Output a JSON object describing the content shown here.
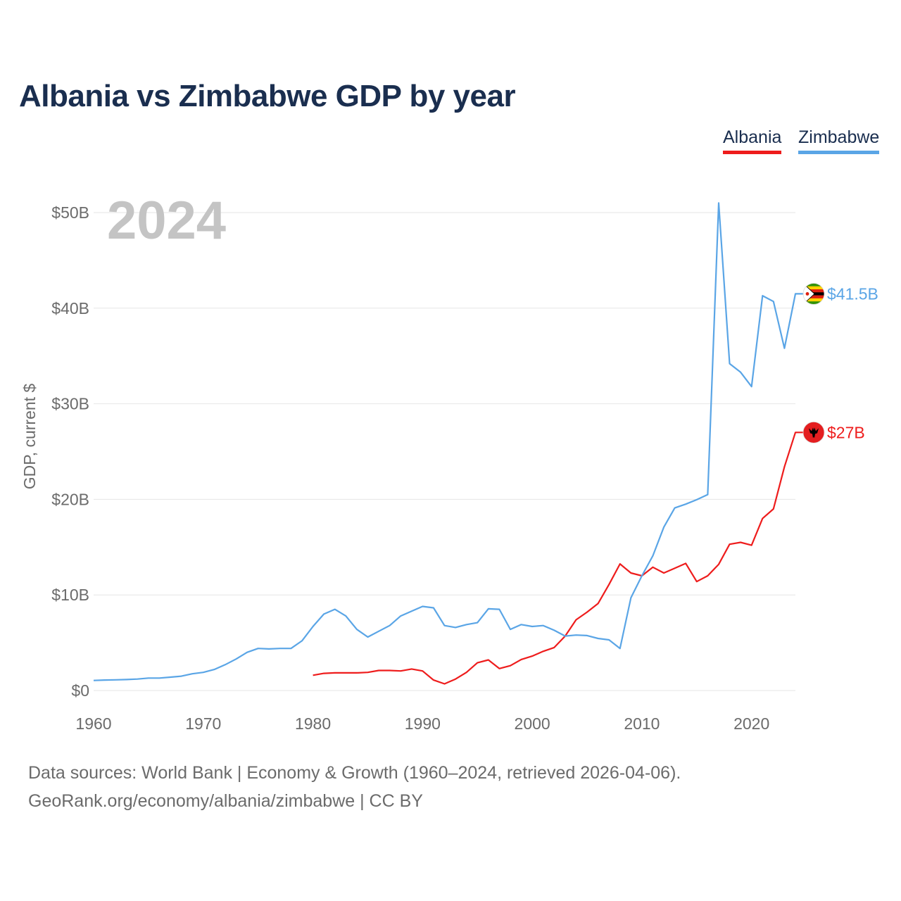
{
  "title": "Albania vs Zimbabwe GDP by year",
  "legend": {
    "albania": "Albania",
    "zimbabwe": "Zimbabwe"
  },
  "colors": {
    "albania": "#ee1c1c",
    "zimbabwe": "#5aa5e6",
    "title": "#1a2e4f",
    "grid": "#e6e6e6",
    "axis_text": "#6b6b6b",
    "year_watermark": "#c4c4c4"
  },
  "icons": {
    "albania": "albania-flag-icon",
    "zimbabwe": "zimbabwe-flag-icon"
  },
  "sources": {
    "line1": "Data sources: World Bank | Economy & Growth (1960–2024, retrieved 2026-04-06).",
    "line2": "GeoRank.org/economy/albania/zimbabwe | CC BY"
  },
  "chart_data": {
    "type": "line",
    "title": "Albania vs Zimbabwe GDP by year",
    "xlabel": "",
    "ylabel": "GDP, current $",
    "xlim": [
      1960,
      2024
    ],
    "ylim": [
      0,
      52
    ],
    "y_unit": "billion USD",
    "x_ticks": [
      1960,
      1970,
      1980,
      1990,
      2000,
      2010,
      2020
    ],
    "x_tick_labels": [
      "1960",
      "1970",
      "1980",
      "1990",
      "2000",
      "2010",
      "2020"
    ],
    "y_ticks": [
      0,
      10,
      20,
      30,
      40,
      50
    ],
    "y_tick_labels": [
      "$0",
      "$10B",
      "$20B",
      "$30B",
      "$40B",
      "$50B"
    ],
    "grid": true,
    "legend_position": "top-right",
    "year_label": "2024",
    "series": [
      {
        "name": "Albania",
        "key": "albania",
        "end_label": "$27B",
        "x": [
          1980,
          1981,
          1982,
          1983,
          1984,
          1985,
          1986,
          1987,
          1988,
          1989,
          1990,
          1991,
          1992,
          1993,
          1994,
          1995,
          1996,
          1997,
          1998,
          1999,
          2000,
          2001,
          2002,
          2003,
          2004,
          2005,
          2006,
          2007,
          2008,
          2009,
          2010,
          2011,
          2012,
          2013,
          2014,
          2015,
          2016,
          2017,
          2018,
          2019,
          2020,
          2021,
          2022,
          2023,
          2024
        ],
        "values": [
          1.6,
          1.8,
          1.85,
          1.85,
          1.85,
          1.9,
          2.1,
          2.1,
          2.05,
          2.25,
          2.05,
          1.1,
          0.7,
          1.2,
          1.9,
          2.9,
          3.2,
          2.3,
          2.6,
          3.25,
          3.6,
          4.1,
          4.5,
          5.7,
          7.4,
          8.2,
          9.1,
          11.1,
          13.25,
          12.3,
          12.0,
          12.9,
          12.3,
          12.8,
          13.3,
          11.4,
          12.0,
          13.2,
          15.3,
          15.5,
          15.2,
          18.0,
          19.0,
          23.4,
          27.0
        ]
      },
      {
        "name": "Zimbabwe",
        "key": "zimbabwe",
        "end_label": "$41.5B",
        "x": [
          1960,
          1961,
          1962,
          1963,
          1964,
          1965,
          1966,
          1967,
          1968,
          1969,
          1970,
          1971,
          1972,
          1973,
          1974,
          1975,
          1976,
          1977,
          1978,
          1979,
          1980,
          1981,
          1982,
          1983,
          1984,
          1985,
          1986,
          1987,
          1988,
          1989,
          1990,
          1991,
          1992,
          1993,
          1994,
          1995,
          1996,
          1997,
          1998,
          1999,
          2000,
          2001,
          2002,
          2003,
          2004,
          2005,
          2006,
          2007,
          2008,
          2009,
          2010,
          2011,
          2012,
          2013,
          2014,
          2015,
          2016,
          2017,
          2018,
          2019,
          2020,
          2021,
          2022,
          2023,
          2024
        ],
        "values": [
          1.05,
          1.1,
          1.12,
          1.15,
          1.2,
          1.3,
          1.3,
          1.4,
          1.5,
          1.75,
          1.9,
          2.2,
          2.7,
          3.3,
          4.0,
          4.4,
          4.35,
          4.4,
          4.4,
          5.2,
          6.7,
          8.0,
          8.5,
          7.8,
          6.4,
          5.6,
          6.2,
          6.8,
          7.8,
          8.3,
          8.8,
          8.65,
          6.8,
          6.6,
          6.9,
          7.1,
          8.55,
          8.5,
          6.4,
          6.9,
          6.7,
          6.8,
          6.3,
          5.7,
          5.8,
          5.75,
          5.45,
          5.3,
          4.4,
          9.7,
          12.0,
          14.1,
          17.1,
          19.1,
          19.5,
          19.96,
          20.5,
          51.0,
          34.2,
          33.3,
          31.8,
          41.3,
          40.7,
          35.8,
          41.5
        ]
      }
    ]
  }
}
